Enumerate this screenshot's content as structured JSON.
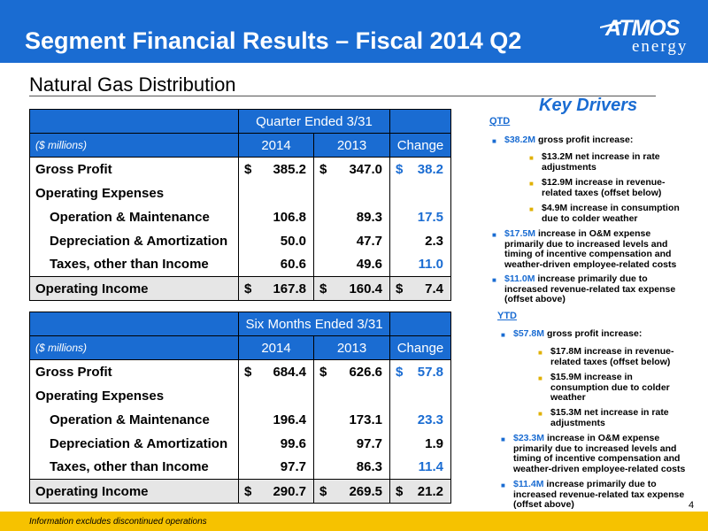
{
  "header": {
    "title": "Segment Financial Results – Fiscal 2014 Q2",
    "logo_top": "ATMOS",
    "logo_bottom": "energy",
    "colors": {
      "bar": "#1a6cd2",
      "accent": "#1a6cd2",
      "footer": "#f6c200"
    }
  },
  "subtitle": "Natural Gas Distribution",
  "tables": [
    {
      "period": "Quarter Ended  3/31",
      "units": "($ millions)",
      "col_2014": "2014",
      "col_2013": "2013",
      "col_change": "Change",
      "rows": [
        {
          "label": "Gross Profit",
          "v2014_cur": "$",
          "v2014": "385.2",
          "v2013_cur": "$",
          "v2013": "347.0",
          "chg_cur": "$",
          "chg": "38.2"
        },
        {
          "label": "Operating Expenses",
          "v2014_cur": "",
          "v2014": "",
          "v2013_cur": "",
          "v2013": "",
          "chg_cur": "",
          "chg": ""
        },
        {
          "label": "Operation & Maintenance",
          "v2014_cur": "",
          "v2014": "106.8",
          "v2013_cur": "",
          "v2013": "89.3",
          "chg_cur": "",
          "chg": "17.5"
        },
        {
          "label": "Depreciation & Amortization",
          "v2014_cur": "",
          "v2014": "50.0",
          "v2013_cur": "",
          "v2013": "47.7",
          "chg_cur": "",
          "chg": "2.3"
        },
        {
          "label": "Taxes, other than Income",
          "v2014_cur": "",
          "v2014": "60.6",
          "v2013_cur": "",
          "v2013": "49.6",
          "chg_cur": "",
          "chg": "11.0"
        },
        {
          "label": "Operating Income",
          "v2014_cur": "$",
          "v2014": "167.8",
          "v2013_cur": "$",
          "v2013": "160.4",
          "chg_cur": "$",
          "chg": "7.4"
        }
      ]
    },
    {
      "period": "Six Months Ended 3/31",
      "units": "($ millions)",
      "col_2014": "2014",
      "col_2013": "2013",
      "col_change": "Change",
      "rows": [
        {
          "label": "Gross Profit",
          "v2014_cur": "$",
          "v2014": "684.4",
          "v2013_cur": "$",
          "v2013": "626.6",
          "chg_cur": "$",
          "chg": "57.8"
        },
        {
          "label": "Operating Expenses",
          "v2014_cur": "",
          "v2014": "",
          "v2013_cur": "",
          "v2013": "",
          "chg_cur": "",
          "chg": ""
        },
        {
          "label": "Operation & Maintenance",
          "v2014_cur": "",
          "v2014": "196.4",
          "v2013_cur": "",
          "v2013": "173.1",
          "chg_cur": "",
          "chg": "23.3"
        },
        {
          "label": "Depreciation & Amortization",
          "v2014_cur": "",
          "v2014": "99.6",
          "v2013_cur": "",
          "v2013": "97.7",
          "chg_cur": "",
          "chg": "1.9"
        },
        {
          "label": "Taxes, other than Income",
          "v2014_cur": "",
          "v2014": "97.7",
          "v2013_cur": "",
          "v2013": "86.3",
          "chg_cur": "",
          "chg": "11.4"
        },
        {
          "label": "Operating Income",
          "v2014_cur": "$",
          "v2014": "290.7",
          "v2013_cur": "$",
          "v2013": "269.5",
          "chg_cur": "$",
          "chg": "21.2"
        }
      ]
    }
  ],
  "drivers": {
    "title": "Key Drivers",
    "qtd_label": "QTD",
    "qtd": [
      {
        "hl": "$38.2M",
        "text": " gross profit increase:"
      },
      {
        "text": "$13.2M net increase in rate adjustments"
      },
      {
        "text": "$12.9M increase in revenue-related taxes (offset below)"
      },
      {
        "text": "$4.9M increase in consumption due to colder weather"
      },
      {
        "hl": "$17.5M",
        "text": " increase in O&M expense primarily due to increased levels and timing of incentive compensation and weather-driven employee-related costs"
      },
      {
        "hl": "$11.0M",
        "text": " increase primarily due to increased revenue-related tax expense (offset above)"
      }
    ],
    "ytd_label": "YTD",
    "ytd": [
      {
        "hl": "$57.8M",
        "text": " gross profit increase:"
      },
      {
        "text": "$17.8M increase in revenue-related taxes (offset below)"
      },
      {
        "text": "$15.9M increase in consumption due to colder weather"
      },
      {
        "text": "$15.3M net increase in rate adjustments"
      },
      {
        "hl": "$23.3M",
        "text": " increase in O&M expense primarily due to increased levels and timing of incentive compensation and weather-driven employee-related costs"
      },
      {
        "hl": "$11.4M",
        "text": " increase primarily due to increased revenue-related tax expense (offset above)"
      }
    ]
  },
  "footer": {
    "note": "Information excludes discontinued operations",
    "page": "4"
  }
}
